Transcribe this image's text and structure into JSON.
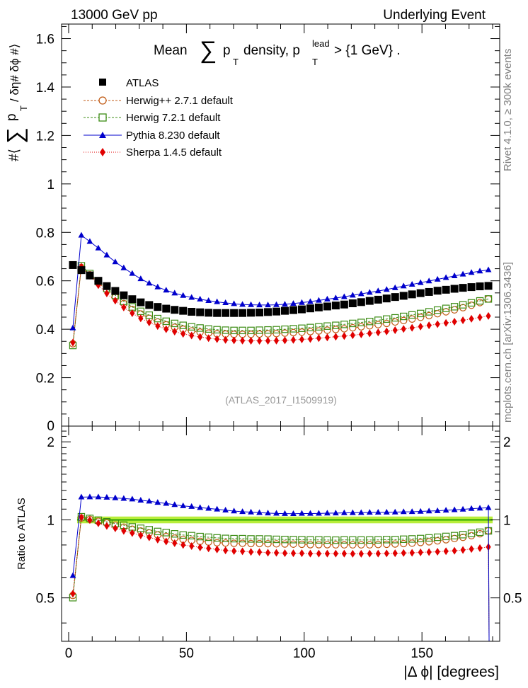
{
  "header": {
    "left": "13000 GeV pp",
    "right": "Underlying Event"
  },
  "side": {
    "rivet": "Rivet 4.1.0, ≥ 300k events",
    "mcplots": "mcplots.cern.ch [arXiv:1306.3436]"
  },
  "colors": {
    "atlas": "#000000",
    "herwigpp": "#c05a14",
    "herwig7": "#3c8c14",
    "pythia": "#0000cc",
    "sherpa": "#e00000",
    "band": "#b8ee3a",
    "refline": "#2aa800"
  },
  "chart_data": [
    {
      "type": "scatter",
      "title": "Mean  ∑ p_T density, p_T^lead > {1 GeV} .",
      "title_parts": {
        "mean": "Mean",
        "sum": "∑",
        "p": "p",
        "sub_t": "T",
        "density": "density, p",
        "sup_lead": "lead",
        "sub_t2": "T",
        "cut": "> {1 GeV} ."
      },
      "ylabel_parts": {
        "pre": "#⟨",
        "sum": "∑",
        "p": "p",
        "sub_t": "T",
        "post": "/ δη# δϕ #⟩"
      },
      "xlim": [
        -3,
        183
      ],
      "ylim": [
        0,
        1.66
      ],
      "x": [
        1.8,
        5.4,
        9,
        12.6,
        16.2,
        19.8,
        23.4,
        27,
        30.6,
        34.2,
        37.8,
        41.4,
        45,
        48.6,
        52.2,
        55.8,
        59.4,
        63,
        66.6,
        70.2,
        73.8,
        77.4,
        81,
        84.6,
        88.2,
        91.8,
        95.4,
        99,
        102.6,
        106.2,
        109.8,
        113.4,
        117,
        120.6,
        124.2,
        127.8,
        131.4,
        135,
        138.6,
        142.2,
        145.8,
        149.4,
        153,
        156.6,
        160.2,
        163.8,
        167.4,
        171,
        174.6,
        178.2
      ],
      "yticks": [
        "0",
        "0.2",
        "0.4",
        "0.6",
        "0.8",
        "1",
        "1.2",
        "1.4",
        "1.6"
      ],
      "watermark": "(ATLAS_2017_I1509919)",
      "series": [
        {
          "name": "ATLAS",
          "key": "atlas",
          "values": [
            0.665,
            0.644,
            0.622,
            0.6,
            0.578,
            0.558,
            0.54,
            0.524,
            0.511,
            0.5,
            0.492,
            0.485,
            0.48,
            0.476,
            0.472,
            0.47,
            0.468,
            0.467,
            0.467,
            0.467,
            0.467,
            0.468,
            0.469,
            0.471,
            0.473,
            0.476,
            0.479,
            0.482,
            0.486,
            0.49,
            0.494,
            0.498,
            0.502,
            0.507,
            0.512,
            0.517,
            0.522,
            0.527,
            0.533,
            0.538,
            0.544,
            0.549,
            0.554,
            0.559,
            0.563,
            0.567,
            0.571,
            0.574,
            0.577,
            0.579
          ]
        },
        {
          "name": "Herwig++ 2.7.1 default",
          "key": "herwigpp",
          "values": [
            0.34,
            0.655,
            0.625,
            0.592,
            0.562,
            0.532,
            0.506,
            0.482,
            0.463,
            0.445,
            0.43,
            0.418,
            0.408,
            0.4,
            0.393,
            0.388,
            0.384,
            0.381,
            0.38,
            0.379,
            0.379,
            0.379,
            0.38,
            0.381,
            0.382,
            0.384,
            0.386,
            0.388,
            0.39,
            0.393,
            0.396,
            0.399,
            0.402,
            0.406,
            0.41,
            0.414,
            0.419,
            0.424,
            0.43,
            0.436,
            0.442,
            0.449,
            0.456,
            0.464,
            0.472,
            0.48,
            0.489,
            0.499,
            0.51,
            0.525
          ]
        },
        {
          "name": "Herwig 7.2.1 default",
          "key": "herwig7",
          "values": [
            0.333,
            0.662,
            0.63,
            0.598,
            0.568,
            0.54,
            0.515,
            0.492,
            0.474,
            0.458,
            0.444,
            0.433,
            0.424,
            0.416,
            0.41,
            0.405,
            0.401,
            0.398,
            0.396,
            0.395,
            0.395,
            0.395,
            0.396,
            0.397,
            0.398,
            0.4,
            0.402,
            0.404,
            0.407,
            0.41,
            0.413,
            0.416,
            0.42,
            0.424,
            0.428,
            0.432,
            0.437,
            0.442,
            0.447,
            0.453,
            0.459,
            0.465,
            0.472,
            0.479,
            0.486,
            0.493,
            0.501,
            0.509,
            0.517,
            0.525
          ]
        },
        {
          "name": "Pythia 8.230 default",
          "key": "pythia",
          "values": [
            0.405,
            0.788,
            0.762,
            0.735,
            0.706,
            0.678,
            0.653,
            0.63,
            0.608,
            0.59,
            0.574,
            0.561,
            0.549,
            0.539,
            0.531,
            0.524,
            0.518,
            0.513,
            0.509,
            0.505,
            0.502,
            0.501,
            0.5,
            0.5,
            0.501,
            0.503,
            0.506,
            0.51,
            0.514,
            0.519,
            0.524,
            0.529,
            0.534,
            0.54,
            0.546,
            0.552,
            0.558,
            0.564,
            0.571,
            0.578,
            0.585,
            0.592,
            0.599,
            0.606,
            0.613,
            0.62,
            0.627,
            0.634,
            0.64,
            0.645
          ]
        },
        {
          "name": "Sherpa 1.4.5 default",
          "key": "sherpa",
          "values": [
            0.345,
            0.658,
            0.621,
            0.582,
            0.548,
            0.518,
            0.49,
            0.466,
            0.445,
            0.428,
            0.413,
            0.4,
            0.39,
            0.381,
            0.374,
            0.368,
            0.363,
            0.359,
            0.356,
            0.354,
            0.353,
            0.352,
            0.352,
            0.352,
            0.353,
            0.354,
            0.356,
            0.358,
            0.36,
            0.363,
            0.366,
            0.369,
            0.372,
            0.375,
            0.379,
            0.383,
            0.387,
            0.391,
            0.396,
            0.401,
            0.406,
            0.411,
            0.416,
            0.421,
            0.426,
            0.431,
            0.437,
            0.443,
            0.449,
            0.455
          ]
        }
      ]
    },
    {
      "type": "scatter",
      "title": "",
      "ylabel": "Ratio to ATLAS",
      "xlabel": "|Δ ϕ| [degrees]",
      "ylim": [
        0.34,
        2.3
      ],
      "xticks": [
        "0",
        "50",
        "100",
        "150"
      ],
      "yticks": [
        "0.5",
        "1",
        "2"
      ],
      "band_halfwidth": 0.03,
      "series": [
        {
          "name": "Herwig++ 2.7.1 default",
          "key": "herwigpp",
          "values": [
            0.511,
            1.017,
            1.005,
            0.987,
            0.972,
            0.953,
            0.937,
            0.92,
            0.906,
            0.89,
            0.874,
            0.862,
            0.85,
            0.84,
            0.833,
            0.826,
            0.821,
            0.816,
            0.814,
            0.812,
            0.812,
            0.81,
            0.81,
            0.809,
            0.808,
            0.807,
            0.806,
            0.805,
            0.802,
            0.802,
            0.802,
            0.801,
            0.801,
            0.801,
            0.801,
            0.801,
            0.803,
            0.805,
            0.807,
            0.81,
            0.813,
            0.818,
            0.823,
            0.83,
            0.838,
            0.847,
            0.856,
            0.869,
            0.884,
            0.907
          ]
        },
        {
          "name": "Herwig 7.2.1 default",
          "key": "herwig7",
          "values": [
            0.501,
            1.028,
            1.013,
            0.997,
            0.983,
            0.968,
            0.954,
            0.939,
            0.928,
            0.916,
            0.902,
            0.893,
            0.883,
            0.874,
            0.869,
            0.862,
            0.857,
            0.852,
            0.848,
            0.846,
            0.846,
            0.844,
            0.844,
            0.843,
            0.841,
            0.84,
            0.839,
            0.838,
            0.837,
            0.837,
            0.836,
            0.835,
            0.837,
            0.836,
            0.836,
            0.836,
            0.837,
            0.839,
            0.839,
            0.842,
            0.844,
            0.847,
            0.852,
            0.857,
            0.863,
            0.869,
            0.877,
            0.887,
            0.896,
            0.907
          ]
        },
        {
          "name": "Pythia 8.230 default",
          "key": "pythia",
          "values": [
            0.609,
            1.224,
            1.225,
            1.225,
            1.221,
            1.215,
            1.209,
            1.202,
            1.19,
            1.18,
            1.167,
            1.157,
            1.144,
            1.132,
            1.125,
            1.115,
            1.107,
            1.099,
            1.09,
            1.081,
            1.075,
            1.071,
            1.066,
            1.062,
            1.059,
            1.057,
            1.056,
            1.058,
            1.058,
            1.059,
            1.061,
            1.062,
            1.064,
            1.065,
            1.066,
            1.068,
            1.069,
            1.07,
            1.071,
            1.074,
            1.075,
            1.078,
            1.081,
            1.084,
            1.089,
            1.093,
            1.098,
            1.105,
            1.109,
            1.114
          ]
        },
        {
          "name": "Sherpa 1.4.5 default",
          "key": "sherpa",
          "values": [
            0.519,
            1.022,
            0.998,
            0.97,
            0.948,
            0.928,
            0.907,
            0.889,
            0.871,
            0.856,
            0.839,
            0.825,
            0.813,
            0.8,
            0.792,
            0.783,
            0.776,
            0.769,
            0.762,
            0.758,
            0.756,
            0.752,
            0.751,
            0.747,
            0.746,
            0.744,
            0.743,
            0.743,
            0.741,
            0.741,
            0.741,
            0.741,
            0.741,
            0.74,
            0.74,
            0.741,
            0.741,
            0.742,
            0.743,
            0.745,
            0.746,
            0.749,
            0.751,
            0.753,
            0.757,
            0.76,
            0.765,
            0.772,
            0.778,
            0.786
          ]
        }
      ]
    }
  ]
}
